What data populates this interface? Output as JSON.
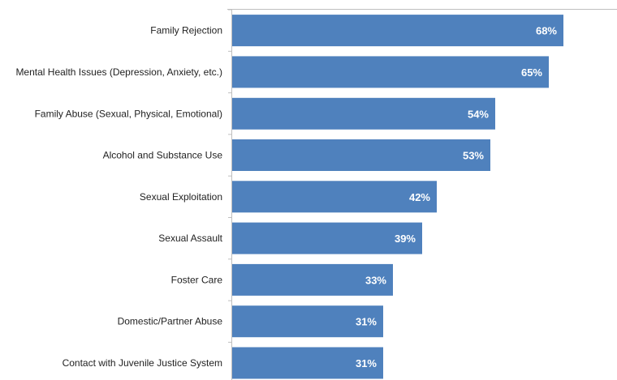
{
  "chart_data": {
    "type": "bar",
    "orientation": "horizontal",
    "categories": [
      "Family Rejection",
      "Mental Health Issues (Depression, Anxiety, etc.)",
      "Family Abuse (Sexual, Physical, Emotional)",
      "Alcohol and Substance Use",
      "Sexual Exploitation",
      "Sexual Assault",
      "Foster Care",
      "Domestic/Partner Abuse",
      "Contact with Juvenile Justice System"
    ],
    "values": [
      68,
      65,
      54,
      53,
      42,
      39,
      33,
      31,
      31
    ],
    "value_labels": [
      "68%",
      "65%",
      "54%",
      "53%",
      "42%",
      "39%",
      "33%",
      "31%",
      "31%"
    ],
    "title": "",
    "xlabel": "",
    "ylabel": "",
    "xlim": [
      0,
      80
    ],
    "grid": false,
    "legend": "none",
    "bar_color": "#4F81BD",
    "axis_color": "#BFBFBF"
  }
}
